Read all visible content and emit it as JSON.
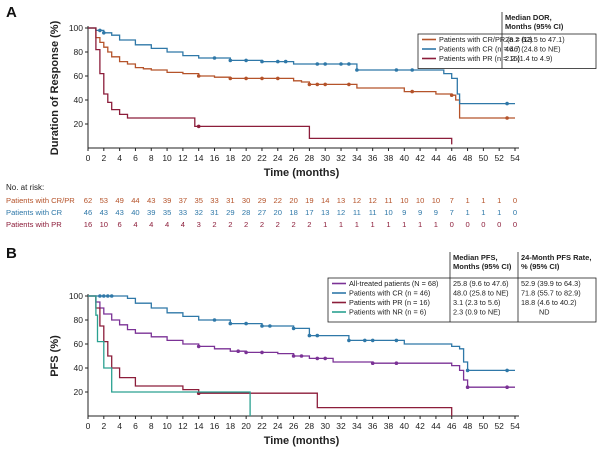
{
  "colors": {
    "crpr": "#b5532a",
    "cr": "#2f78a8",
    "pr": "#8c1d3a",
    "all": "#7b3296",
    "nr": "#2aa191",
    "axis": "#222222"
  },
  "chart_data": [
    {
      "panel": "A",
      "type": "line",
      "title": "",
      "xlabel": "Time (months)",
      "ylabel": "Duration of Response (%)",
      "xlim": [
        0,
        54
      ],
      "ylim": [
        0,
        100
      ],
      "xticks": [
        "0",
        "2",
        "4",
        "6",
        "8",
        "10",
        "12",
        "14",
        "16",
        "18",
        "20",
        "22",
        "24",
        "26",
        "28",
        "30",
        "32",
        "34",
        "36",
        "38",
        "40",
        "42",
        "44",
        "46",
        "48",
        "50",
        "52",
        "54"
      ],
      "yticks": [
        "20",
        "40",
        "60",
        "80",
        "100"
      ],
      "legend_header": [
        "Median DOR,",
        "Months (95% CI)"
      ],
      "series": [
        {
          "name": "Patients with CR/PR (n = 62)",
          "median": "28.2 (13.5 to 47.1)",
          "color_key": "crpr",
          "x": [
            0,
            1,
            1.5,
            2,
            2.5,
            3,
            4,
            5,
            6,
            7,
            8,
            10,
            12,
            14,
            16,
            18,
            22,
            26,
            27,
            28,
            34,
            40,
            44,
            46,
            46.5,
            47,
            54
          ],
          "y": [
            100,
            92,
            88,
            84,
            80,
            76,
            72,
            70,
            67,
            66,
            65,
            63,
            62,
            60,
            59,
            58,
            58,
            56,
            55,
            53,
            50,
            47,
            45,
            44,
            40,
            25,
            25
          ],
          "censor_x": [
            14,
            18,
            20,
            22,
            24,
            28,
            29,
            30,
            33,
            41,
            46,
            53
          ]
        },
        {
          "name": "Patients with CR (n = 46)",
          "median": "46.7 (24.8 to NE)",
          "color_key": "cr",
          "x": [
            0,
            1,
            2,
            3,
            4,
            6,
            8,
            10,
            12,
            14,
            18,
            22,
            26,
            34,
            45,
            46,
            46.7,
            47,
            54
          ],
          "y": [
            100,
            98,
            96,
            94,
            90,
            86,
            83,
            80,
            77,
            75,
            73,
            72,
            70,
            65,
            62,
            58,
            45,
            37,
            37
          ],
          "censor_x": [
            1.5,
            2,
            16,
            18,
            20,
            22,
            24,
            25,
            29,
            30,
            32,
            33,
            34,
            39,
            41,
            53
          ]
        },
        {
          "name": "Patients with PR (n = 16)",
          "median": "2.2 (1.4 to 4.9)",
          "color_key": "pr",
          "x": [
            0,
            1,
            1.5,
            2,
            2.5,
            3,
            4,
            5,
            13.5,
            28,
            46
          ],
          "y": [
            100,
            82,
            62,
            45,
            38,
            32,
            28,
            25,
            18,
            8,
            3
          ],
          "censor_x": [
            14
          ]
        }
      ],
      "at_risk": {
        "title": "No. at risk:",
        "rows": [
          {
            "label": "Patients with CR/PR",
            "color_key": "crpr",
            "values": [
              "62",
              "53",
              "49",
              "44",
              "43",
              "39",
              "37",
              "35",
              "33",
              "31",
              "30",
              "29",
              "22",
              "20",
              "19",
              "14",
              "13",
              "12",
              "12",
              "11",
              "10",
              "10",
              "10",
              "7",
              "1",
              "1",
              "1",
              "0"
            ]
          },
          {
            "label": "Patients with CR",
            "color_key": "cr",
            "values": [
              "46",
              "43",
              "43",
              "40",
              "39",
              "35",
              "33",
              "32",
              "31",
              "29",
              "28",
              "27",
              "20",
              "18",
              "17",
              "13",
              "12",
              "11",
              "11",
              "10",
              "9",
              "9",
              "9",
              "7",
              "1",
              "1",
              "1",
              "0"
            ]
          },
          {
            "label": "Patients with PR",
            "color_key": "pr",
            "values": [
              "16",
              "10",
              "6",
              "4",
              "4",
              "4",
              "4",
              "3",
              "2",
              "2",
              "2",
              "2",
              "2",
              "2",
              "2",
              "1",
              "1",
              "1",
              "1",
              "1",
              "1",
              "1",
              "1",
              "0",
              "0",
              "0",
              "0",
              "0"
            ]
          }
        ]
      }
    },
    {
      "panel": "B",
      "type": "line",
      "title": "",
      "xlabel": "Time (months)",
      "ylabel": "PFS (%)",
      "xlim": [
        0,
        54
      ],
      "ylim": [
        0,
        100
      ],
      "xticks": [
        "0",
        "2",
        "4",
        "6",
        "8",
        "10",
        "12",
        "14",
        "16",
        "18",
        "20",
        "22",
        "24",
        "26",
        "28",
        "30",
        "32",
        "34",
        "36",
        "38",
        "40",
        "42",
        "44",
        "46",
        "48",
        "50",
        "52",
        "54"
      ],
      "yticks": [
        "20",
        "40",
        "60",
        "80",
        "100"
      ],
      "legend_header": [
        "Median PFS,",
        "Months (95% CI)"
      ],
      "legend_header2": [
        "24-Month PFS Rate,",
        "% (95% CI)"
      ],
      "series": [
        {
          "name": "All-treated patients (N = 68)",
          "median": "25.8 (9.6 to 47.6)",
          "rate24": "52.9 (39.9 to 64.3)",
          "color_key": "all",
          "x": [
            0,
            1,
            1.5,
            2,
            3,
            4,
            5,
            6,
            8,
            10,
            12,
            14,
            16,
            18,
            20,
            24,
            26,
            28,
            31,
            36,
            44,
            46,
            47,
            47.5,
            48,
            54
          ],
          "y": [
            100,
            95,
            90,
            85,
            80,
            76,
            72,
            69,
            66,
            63,
            60,
            58,
            56,
            54,
            53,
            52,
            50,
            48,
            45,
            44,
            44,
            42,
            38,
            30,
            24,
            24
          ],
          "censor_x": [
            14,
            19,
            20,
            22,
            26,
            27,
            29,
            30,
            36,
            39,
            48,
            53
          ]
        },
        {
          "name": "Patients with CR (n = 46)",
          "median": "48.0 (25.8 to NE)",
          "rate24": "71.8 (55.7 to 82.9)",
          "color_key": "cr",
          "x": [
            0,
            4,
            5,
            6,
            8,
            10,
            12,
            14,
            18,
            22,
            26,
            28,
            33,
            40,
            46,
            47,
            47.5,
            48,
            54
          ],
          "y": [
            100,
            100,
            98,
            94,
            90,
            86,
            83,
            80,
            77,
            75,
            73,
            67,
            63,
            60,
            58,
            56,
            45,
            38,
            38
          ],
          "censor_x": [
            1.5,
            2,
            2.5,
            3,
            16,
            18,
            20,
            22,
            23,
            26,
            28,
            29,
            33,
            35,
            36,
            39,
            48,
            53
          ]
        },
        {
          "name": "Patients with PR (n = 16)",
          "median": "3.1 (2.3 to 5.6)",
          "rate24": "18.8 (4.6 to 40.2)",
          "color_key": "pr",
          "x": [
            0,
            1,
            1.5,
            2,
            2.5,
            3,
            4,
            6,
            12,
            14,
            29,
            46
          ],
          "y": [
            100,
            90,
            75,
            62,
            50,
            40,
            32,
            25,
            22,
            19,
            7,
            0
          ],
          "censor_x": [
            14
          ]
        },
        {
          "name": "Patients with NR (n = 6)",
          "median": "2.3 (0.9 to NE)",
          "rate24": "ND",
          "color_key": "nr",
          "x": [
            0,
            1,
            1.2,
            2,
            3,
            20.5,
            20.5
          ],
          "y": [
            100,
            84,
            62,
            40,
            20,
            20,
            0
          ],
          "censor_x": []
        }
      ]
    }
  ]
}
